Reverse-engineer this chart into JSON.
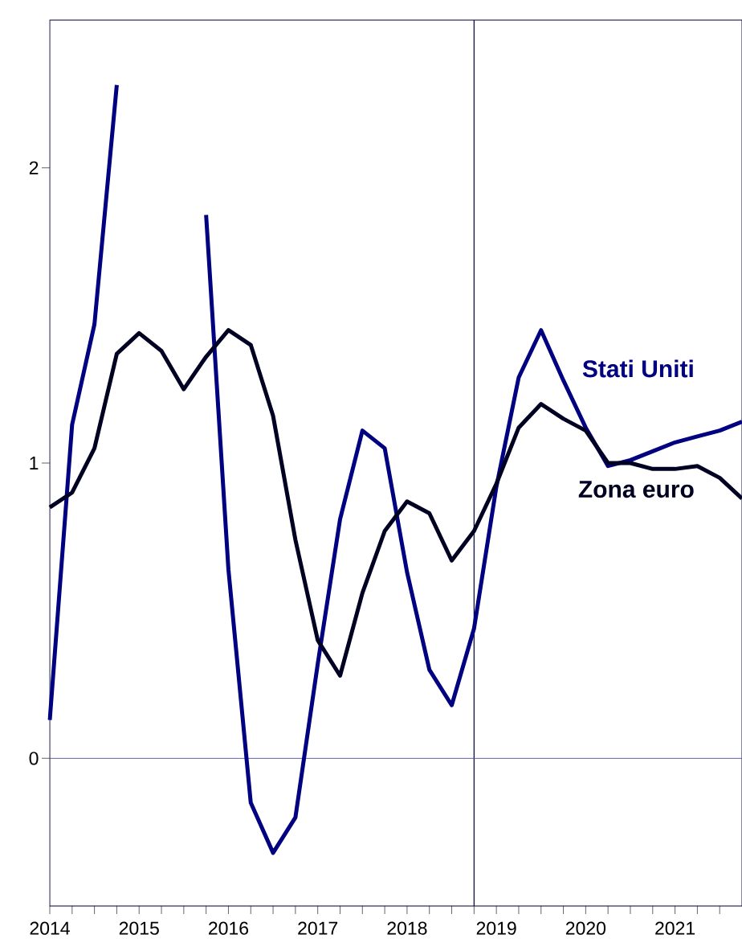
{
  "chart_data": {
    "type": "line",
    "x": [
      2014,
      2014.25,
      2014.5,
      2014.75,
      2015,
      2015.25,
      2015.5,
      2015.75,
      2016,
      2016.25,
      2016.5,
      2016.75,
      2017,
      2017.25,
      2017.5,
      2017.75,
      2018,
      2018.25,
      2018.5,
      2018.75,
      2019,
      2019.25,
      2019.5,
      2019.75,
      2020,
      2020.25,
      2020.5,
      2020.75,
      2021,
      2021.25,
      2021.5,
      2021.75
    ],
    "series": [
      {
        "name": "Stati Uniti",
        "color": "#000080",
        "values": [
          0.13,
          1.13,
          1.47,
          2.28,
          null,
          null,
          null,
          1.84,
          0.64,
          -0.15,
          -0.32,
          -0.2,
          0.32,
          0.81,
          1.11,
          1.05,
          0.63,
          0.3,
          0.18,
          0.44,
          0.92,
          1.29,
          1.45,
          1.28,
          1.12,
          0.99,
          1.01,
          1.04,
          1.07,
          1.09,
          1.11,
          1.14
        ]
      },
      {
        "name": "Zona euro",
        "color": "#000022",
        "values": [
          0.85,
          0.9,
          1.05,
          1.37,
          1.44,
          1.38,
          1.25,
          1.36,
          1.45,
          1.4,
          1.16,
          0.74,
          0.4,
          0.28,
          0.56,
          0.77,
          0.87,
          0.83,
          0.67,
          0.77,
          0.93,
          1.12,
          1.2,
          1.15,
          1.11,
          1.0,
          1.0,
          0.98,
          0.98,
          0.99,
          0.95,
          0.88
        ]
      }
    ],
    "xlim": [
      2014,
      2021.75
    ],
    "ylim": [
      -0.5,
      2.5
    ],
    "xticks": [
      2014,
      {
        "value": 2014.25,
        "label": null
      },
      {
        "value": 2014.5,
        "label": null
      },
      {
        "value": 2014.75,
        "label": null
      },
      2015,
      {
        "value": 2015.25,
        "label": null
      },
      {
        "value": 2015.5,
        "label": null
      },
      {
        "value": 2015.75,
        "label": null
      },
      2016,
      {
        "value": 2016.25,
        "label": null
      },
      {
        "value": 2016.5,
        "label": null
      },
      {
        "value": 2016.75,
        "label": null
      },
      2017,
      {
        "value": 2017.25,
        "label": null
      },
      {
        "value": 2017.5,
        "label": null
      },
      {
        "value": 2017.75,
        "label": null
      },
      2018,
      {
        "value": 2018.25,
        "label": null
      },
      {
        "value": 2018.5,
        "label": null
      },
      {
        "value": 2018.75,
        "label": null
      },
      2019,
      {
        "value": 2019.25,
        "label": null
      },
      {
        "value": 2019.5,
        "label": null
      },
      {
        "value": 2019.75,
        "label": null
      },
      2020,
      {
        "value": 2020.25,
        "label": null
      },
      {
        "value": 2020.5,
        "label": null
      },
      {
        "value": 2020.75,
        "label": null
      },
      2021,
      {
        "value": 2021.25,
        "label": null
      },
      {
        "value": 2021.5,
        "label": null
      }
    ],
    "yticks": [
      0,
      1,
      2
    ],
    "ref_lines": [
      {
        "axis": "x",
        "value": 2018.75
      },
      {
        "axis": "y",
        "value": 0
      }
    ]
  }
}
